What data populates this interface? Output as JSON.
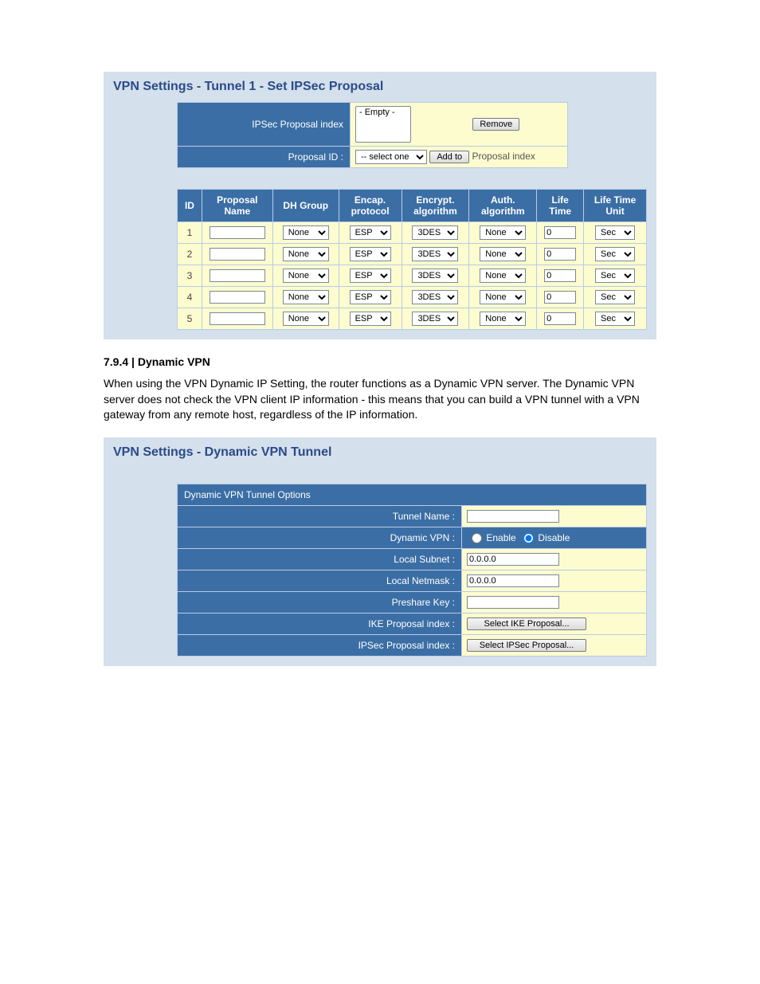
{
  "panel1": {
    "title": "VPN Settings - Tunnel 1 - Set IPSec Proposal",
    "row_index_label": "IPSec Proposal index",
    "row_index_list_value": "- Empty -",
    "remove_label": "Remove",
    "row_id_label": "Proposal ID :",
    "row_id_select": "-- select one --",
    "addto_label": "Add to",
    "addto_suffix": "Proposal index",
    "table": {
      "headers": [
        "ID",
        "Proposal Name",
        "DH Group",
        "Encap. protocol",
        "Encrypt. algorithm",
        "Auth. algorithm",
        "Life Time",
        "Life Time Unit"
      ],
      "rows": [
        {
          "id": "1",
          "name": "",
          "dh": "None",
          "encap": "ESP",
          "encrypt": "3DES",
          "auth": "None",
          "life": "0",
          "unit": "Sec"
        },
        {
          "id": "2",
          "name": "",
          "dh": "None",
          "encap": "ESP",
          "encrypt": "3DES",
          "auth": "None",
          "life": "0",
          "unit": "Sec"
        },
        {
          "id": "3",
          "name": "",
          "dh": "None",
          "encap": "ESP",
          "encrypt": "3DES",
          "auth": "None",
          "life": "0",
          "unit": "Sec"
        },
        {
          "id": "4",
          "name": "",
          "dh": "None",
          "encap": "ESP",
          "encrypt": "3DES",
          "auth": "None",
          "life": "0",
          "unit": "Sec"
        },
        {
          "id": "5",
          "name": "",
          "dh": "None",
          "encap": "ESP",
          "encrypt": "3DES",
          "auth": "None",
          "life": "0",
          "unit": "Sec"
        }
      ]
    }
  },
  "section": {
    "heading": "7.9.4 | Dynamic VPN",
    "body": "When using the VPN Dynamic IP Setting, the router functions as a Dynamic VPN server. The Dynamic VPN server does not check the VPN client IP information - this means that you can build a VPN tunnel with a VPN gateway from any remote host, regardless of the IP information."
  },
  "panel2": {
    "title": "VPN Settings - Dynamic VPN Tunnel",
    "block_header": "Dynamic VPN Tunnel Options",
    "tunnel_name_label": "Tunnel Name :",
    "tunnel_name_value": "",
    "dynamic_vpn_label": "Dynamic VPN :",
    "enable_label": "Enable",
    "disable_label": "Disable",
    "local_subnet_label": "Local Subnet :",
    "local_subnet_value": "0.0.0.0",
    "local_netmask_label": "Local Netmask :",
    "local_netmask_value": "0.0.0.0",
    "preshare_key_label": "Preshare Key :",
    "preshare_key_value": "",
    "ike_label": "IKE Proposal index :",
    "ike_button": "Select IKE Proposal...",
    "ipsec_label": "IPSec Proposal index :",
    "ipsec_button": "Select IPSec Proposal..."
  }
}
